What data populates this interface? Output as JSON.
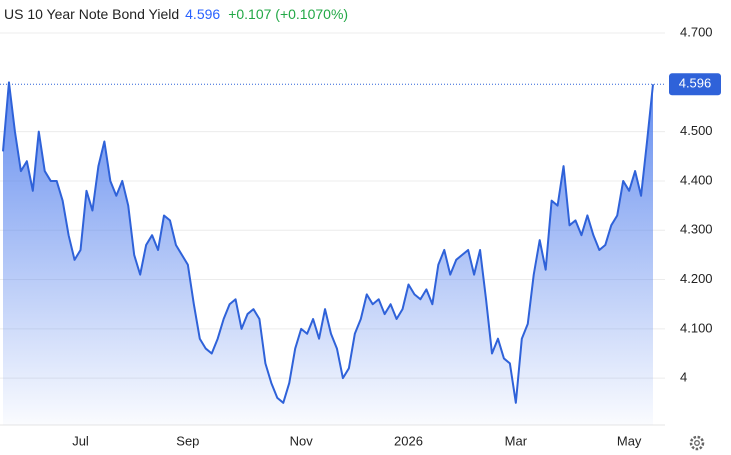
{
  "chart_data": {
    "type": "area",
    "title": "US 10 Year Note Bond Yield",
    "change": "+0.107 (+0.1070%)",
    "categories": [
      null,
      null,
      null,
      null,
      null,
      null,
      null,
      null,
      null,
      null,
      null,
      null,
      null,
      "Jul",
      null,
      null,
      null,
      null,
      null,
      null,
      null,
      null,
      null,
      null,
      null,
      null,
      null,
      null,
      null,
      null,
      null,
      "Sep",
      null,
      null,
      null,
      null,
      null,
      null,
      null,
      null,
      null,
      null,
      null,
      null,
      null,
      null,
      null,
      null,
      null,
      null,
      "Nov",
      null,
      null,
      null,
      null,
      null,
      null,
      null,
      null,
      null,
      null,
      null,
      null,
      null,
      null,
      null,
      null,
      null,
      "2026",
      null,
      null,
      null,
      null,
      null,
      null,
      null,
      null,
      null,
      null,
      null,
      null,
      null,
      null,
      null,
      null,
      null,
      "Mar",
      null,
      null,
      null,
      null,
      null,
      null,
      null,
      null,
      null,
      null,
      null,
      null,
      null,
      null,
      null,
      null,
      null,
      null,
      "May",
      null,
      null,
      null,
      null
    ],
    "values": [
      4.46,
      4.6,
      4.5,
      4.42,
      4.44,
      4.38,
      4.5,
      4.42,
      4.4,
      4.4,
      4.36,
      4.29,
      4.24,
      4.26,
      4.38,
      4.34,
      4.43,
      4.48,
      4.4,
      4.37,
      4.4,
      4.35,
      4.25,
      4.21,
      4.27,
      4.29,
      4.26,
      4.33,
      4.32,
      4.27,
      4.25,
      4.23,
      4.15,
      4.08,
      4.06,
      4.05,
      4.08,
      4.12,
      4.15,
      4.16,
      4.1,
      4.13,
      4.14,
      4.12,
      4.03,
      3.99,
      3.96,
      3.95,
      3.99,
      4.06,
      4.1,
      4.09,
      4.12,
      4.08,
      4.14,
      4.09,
      4.06,
      4.0,
      4.02,
      4.09,
      4.12,
      4.17,
      4.15,
      4.16,
      4.13,
      4.15,
      4.12,
      4.14,
      4.19,
      4.17,
      4.16,
      4.18,
      4.15,
      4.23,
      4.26,
      4.21,
      4.24,
      4.25,
      4.26,
      4.21,
      4.26,
      4.16,
      4.05,
      4.08,
      4.04,
      4.03,
      3.95,
      4.08,
      4.11,
      4.21,
      4.28,
      4.22,
      4.36,
      4.35,
      4.43,
      4.31,
      4.32,
      4.29,
      4.33,
      4.29,
      4.26,
      4.27,
      4.31,
      4.33,
      4.4,
      4.38,
      4.42,
      4.37,
      4.48,
      4.596
    ],
    "color": "#2f62d9",
    "ylim": [
      3.905,
      4.767
    ],
    "yticks": [
      {
        "value": 4.7,
        "label": "4.700"
      },
      {
        "value": 4.5,
        "label": "4.500"
      },
      {
        "value": 4.4,
        "label": "4.400"
      },
      {
        "value": 4.3,
        "label": "4.300"
      },
      {
        "value": 4.2,
        "label": "4.200"
      },
      {
        "value": 4.1,
        "label": "4.100"
      },
      4
    ],
    "grid": true
  }
}
